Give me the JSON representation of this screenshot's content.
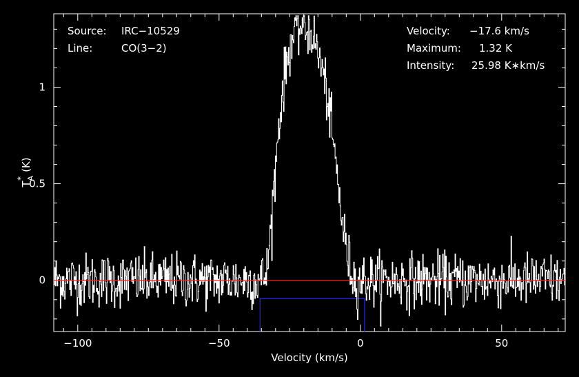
{
  "chart_data": {
    "type": "line",
    "title": "",
    "xlabel": "Velocity (km/s)",
    "ylabel": "T*A (K)",
    "ylabel_parts": {
      "base": "T",
      "sup": "*",
      "sub": "A",
      "unit": "(K)"
    },
    "xlim": [
      -108.5,
      72.5
    ],
    "ylim": [
      -0.265,
      1.38
    ],
    "x_ticks": [
      {
        "value": -100,
        "label": "−100"
      },
      {
        "value": -50,
        "label": "−50"
      },
      {
        "value": 0,
        "label": "0"
      },
      {
        "value": 50,
        "label": "50"
      }
    ],
    "y_ticks": [
      {
        "value": 0,
        "label": "0"
      },
      {
        "value": 0.5,
        "label": "0.5"
      },
      {
        "value": 1,
        "label": "1"
      }
    ],
    "info_left": [
      {
        "key": "Source:",
        "value": "IRC−10529"
      },
      {
        "key": "Line:",
        "value": "CO(3−2)"
      }
    ],
    "info_right": [
      {
        "key": "Velocity:",
        "value": "−17.6 km/s"
      },
      {
        "key": "Maximum:",
        "value": "1.32 K"
      },
      {
        "key": "Intensity:",
        "value": "25.98 K∗km/s"
      }
    ],
    "series": [
      {
        "color": "#ffffff",
        "x": [
          -108,
          -100,
          -90,
          -80,
          -70,
          -60,
          -50,
          -40,
          -35,
          -33,
          -31,
          -29,
          -27,
          -25,
          -23,
          -21,
          -19,
          -17.6,
          -16,
          -14,
          -12,
          -10,
          -8,
          -6,
          -4,
          -2,
          0,
          10,
          20,
          30,
          40,
          50,
          60,
          72
        ],
        "y": [
          0,
          0,
          0,
          0,
          0,
          0,
          0,
          0,
          0,
          0.05,
          0.42,
          0.8,
          1.05,
          1.22,
          1.29,
          1.32,
          1.3,
          1.3,
          1.22,
          1.12,
          0.97,
          0.75,
          0.5,
          0.25,
          0.08,
          0,
          0,
          0,
          0,
          0,
          0,
          0,
          0,
          0
        ],
        "noise_rms": 0.07
      }
    ],
    "baseline": {
      "value": 0,
      "color": "#ff2020"
    },
    "integration_window": {
      "x_start": -35.5,
      "x_end": 1.5,
      "level": -0.095,
      "color": "#2424ff"
    },
    "grid": false,
    "legend": "none"
  }
}
